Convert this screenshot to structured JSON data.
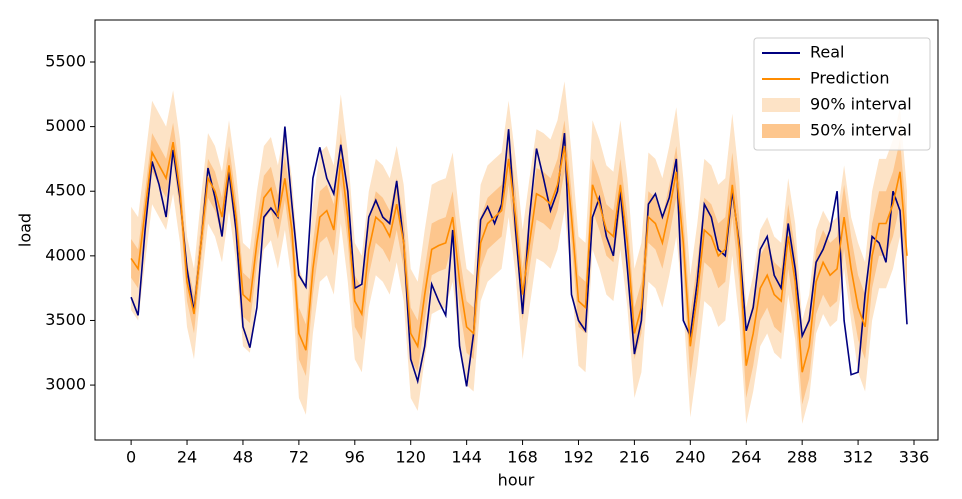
{
  "chart_data": {
    "type": "line",
    "xlabel": "hour",
    "ylabel": "load",
    "xlim": [
      -15.5,
      346.3
    ],
    "ylim": [
      2575,
      5825
    ],
    "xticks": [
      0,
      24,
      48,
      72,
      96,
      120,
      144,
      168,
      192,
      216,
      240,
      264,
      288,
      312,
      336
    ],
    "yticks": [
      3000,
      3500,
      4000,
      4500,
      5000,
      5500
    ],
    "legend": "upper right",
    "x": [
      0,
      3,
      6,
      9,
      12,
      15,
      18,
      21,
      24,
      27,
      30,
      33,
      36,
      39,
      42,
      45,
      48,
      51,
      54,
      57,
      60,
      63,
      66,
      69,
      72,
      75,
      78,
      81,
      84,
      87,
      90,
      93,
      96,
      99,
      102,
      105,
      108,
      111,
      114,
      117,
      120,
      123,
      126,
      129,
      132,
      135,
      138,
      141,
      144,
      147,
      150,
      153,
      156,
      159,
      162,
      165,
      168,
      171,
      174,
      177,
      180,
      183,
      186,
      189,
      192,
      195,
      198,
      201,
      204,
      207,
      210,
      213,
      216,
      219,
      222,
      225,
      228,
      231,
      234,
      237,
      240,
      243,
      246,
      249,
      252,
      255,
      258,
      261,
      264,
      267,
      270,
      273,
      276,
      279,
      282,
      285,
      288,
      291,
      294,
      297,
      300,
      303,
      306,
      309,
      312,
      315,
      318,
      321,
      324,
      327,
      330,
      333
    ],
    "series": [
      {
        "name": "Real",
        "color": "#000080",
        "values": [
          3680,
          3540,
          4200,
          4730,
          4550,
          4300,
          4820,
          4450,
          3900,
          3570,
          4100,
          4680,
          4450,
          4150,
          4650,
          4200,
          3450,
          3290,
          3600,
          4300,
          4370,
          4300,
          5000,
          4400,
          3850,
          3760,
          4600,
          4840,
          4600,
          4480,
          4860,
          4500,
          3750,
          3780,
          4300,
          4430,
          4300,
          4250,
          4580,
          4100,
          3200,
          3030,
          3300,
          3780,
          3650,
          3540,
          4200,
          3300,
          2990,
          3400,
          4280,
          4380,
          4250,
          4400,
          4980,
          4200,
          3550,
          4300,
          4830,
          4600,
          4350,
          4500,
          4950,
          3700,
          3500,
          3420,
          4300,
          4450,
          4150,
          4000,
          4500,
          3900,
          3240,
          3500,
          4400,
          4480,
          4300,
          4450,
          4750,
          3500,
          3380,
          3800,
          4400,
          4300,
          4050,
          4000,
          4500,
          4100,
          3420,
          3600,
          4050,
          4150,
          3850,
          3750,
          4250,
          3900,
          3380,
          3500,
          3950,
          4050,
          4200,
          4500,
          3500,
          3080,
          3100,
          3700,
          4150,
          4100,
          3950,
          4500,
          4350,
          3470
        ]
      },
      {
        "name": "Prediction",
        "color": "#ff8c00",
        "values": [
          3980,
          3900,
          4350,
          4800,
          4700,
          4600,
          4880,
          4500,
          3800,
          3550,
          4100,
          4600,
          4500,
          4300,
          4700,
          4300,
          3700,
          3650,
          4100,
          4450,
          4520,
          4300,
          4600,
          4200,
          3400,
          3270,
          3900,
          4300,
          4350,
          4200,
          4750,
          4300,
          3650,
          3550,
          4050,
          4300,
          4250,
          4150,
          4400,
          4100,
          3400,
          3300,
          3700,
          4050,
          4080,
          4100,
          4300,
          3800,
          3450,
          3400,
          4100,
          4250,
          4300,
          4350,
          4750,
          4300,
          3700,
          4100,
          4480,
          4450,
          4400,
          4550,
          4850,
          4300,
          3650,
          3600,
          4550,
          4400,
          4200,
          4150,
          4550,
          4100,
          3400,
          3600,
          4300,
          4250,
          4100,
          4350,
          4650,
          4100,
          3300,
          3700,
          4200,
          4150,
          4000,
          4050,
          4550,
          4050,
          3150,
          3400,
          3750,
          3850,
          3700,
          3650,
          4150,
          3800,
          3100,
          3300,
          3800,
          3950,
          3850,
          3900,
          4300,
          3900,
          3600,
          3450,
          4000,
          4250,
          4250,
          4400,
          4650,
          4000
        ]
      },
      {
        "name": "90% interval",
        "color": "#fde3c6",
        "lower": [
          3580,
          3500,
          3950,
          4400,
          4300,
          4200,
          4480,
          4100,
          3450,
          3200,
          3750,
          4250,
          4150,
          3950,
          4350,
          3950,
          3300,
          3250,
          3700,
          4050,
          4120,
          3900,
          4200,
          3800,
          2900,
          2770,
          3400,
          3800,
          3850,
          3700,
          4250,
          3800,
          3200,
          3100,
          3600,
          3850,
          3800,
          3700,
          3950,
          3650,
          2900,
          2800,
          3200,
          3550,
          3580,
          3600,
          3800,
          3300,
          3000,
          2950,
          3650,
          3800,
          3850,
          3900,
          4300,
          3850,
          3200,
          3600,
          3980,
          3950,
          3900,
          4050,
          4350,
          3800,
          3150,
          3100,
          4050,
          3900,
          3700,
          3650,
          4050,
          3600,
          2900,
          3100,
          3800,
          3750,
          3600,
          3850,
          4150,
          3600,
          2750,
          3150,
          3650,
          3600,
          3450,
          3500,
          4000,
          3500,
          2700,
          2950,
          3300,
          3400,
          3250,
          3200,
          3700,
          3350,
          2700,
          2900,
          3400,
          3550,
          3450,
          3500,
          3900,
          3500,
          3100,
          2950,
          3500,
          3750,
          3750,
          3900,
          4150,
          3500
        ],
        "upper": [
          4380,
          4300,
          4750,
          5200,
          5100,
          5000,
          5280,
          4900,
          4150,
          3900,
          4450,
          4950,
          4850,
          4650,
          5050,
          4650,
          4100,
          4050,
          4500,
          4850,
          4920,
          4700,
          5000,
          4600,
          3900,
          3770,
          4400,
          4800,
          4850,
          4700,
          5250,
          4800,
          4100,
          4000,
          4500,
          4750,
          4700,
          4600,
          4850,
          4550,
          3900,
          3800,
          4200,
          4550,
          4580,
          4600,
          4800,
          4300,
          3900,
          3850,
          4550,
          4700,
          4750,
          4800,
          5200,
          4750,
          4200,
          4600,
          4980,
          4950,
          4900,
          5050,
          5350,
          4800,
          4150,
          4100,
          5050,
          4900,
          4700,
          4650,
          5050,
          4600,
          3900,
          4100,
          4800,
          4750,
          4600,
          4850,
          5150,
          4600,
          3850,
          4250,
          4750,
          4700,
          4550,
          4600,
          5100,
          4600,
          3600,
          3850,
          4200,
          4300,
          4150,
          4100,
          4600,
          4250,
          3500,
          3700,
          4200,
          4350,
          4250,
          4300,
          4700,
          4300,
          4100,
          3950,
          4500,
          4750,
          4750,
          4900,
          5150,
          4500
        ]
      },
      {
        "name": "50% interval",
        "color": "#fdc68d",
        "lower": [
          3830,
          3750,
          4200,
          4650,
          4550,
          4450,
          4730,
          4350,
          3650,
          3400,
          3950,
          4450,
          4350,
          4150,
          4550,
          4150,
          3530,
          3480,
          3930,
          4280,
          4350,
          4130,
          4430,
          4030,
          3200,
          3070,
          3700,
          4100,
          4150,
          4000,
          4550,
          4100,
          3450,
          3350,
          3850,
          4100,
          4050,
          3950,
          4200,
          3900,
          3200,
          3100,
          3500,
          3850,
          3880,
          3900,
          4100,
          3600,
          3250,
          3200,
          3900,
          4050,
          4100,
          4150,
          4550,
          4100,
          3500,
          3900,
          4280,
          4250,
          4200,
          4350,
          4650,
          4100,
          3450,
          3400,
          4350,
          4200,
          4000,
          3950,
          4350,
          3900,
          3200,
          3400,
          4100,
          4050,
          3900,
          4150,
          4450,
          3900,
          3050,
          3450,
          3950,
          3900,
          3750,
          3800,
          4300,
          3800,
          2900,
          3150,
          3500,
          3600,
          3450,
          3400,
          3900,
          3550,
          2850,
          3050,
          3550,
          3700,
          3600,
          3650,
          4050,
          3650,
          3350,
          3200,
          3750,
          4000,
          4000,
          4150,
          4400,
          3750
        ],
        "upper": [
          4130,
          4050,
          4500,
          4950,
          4850,
          4750,
          5030,
          4650,
          3950,
          3700,
          4250,
          4750,
          4650,
          4450,
          4850,
          4450,
          3870,
          3820,
          4270,
          4620,
          4690,
          4470,
          4770,
          4370,
          3600,
          3470,
          4100,
          4500,
          4550,
          4400,
          4950,
          4500,
          3850,
          3750,
          4250,
          4500,
          4450,
          4350,
          4600,
          4300,
          3600,
          3500,
          3900,
          4250,
          4280,
          4300,
          4500,
          4000,
          3650,
          3600,
          4300,
          4450,
          4500,
          4550,
          4950,
          4500,
          3900,
          4300,
          4680,
          4650,
          4600,
          4750,
          5050,
          4500,
          3850,
          3800,
          4750,
          4600,
          4400,
          4350,
          4750,
          4300,
          3600,
          3800,
          4500,
          4450,
          4300,
          4550,
          4850,
          4300,
          3550,
          3950,
          4450,
          4400,
          4250,
          4300,
          4800,
          4300,
          3400,
          3650,
          4000,
          4100,
          3950,
          3900,
          4400,
          4050,
          3350,
          3550,
          4050,
          4200,
          4100,
          4150,
          4550,
          4150,
          3850,
          3700,
          4250,
          4500,
          4500,
          4650,
          4900,
          4250
        ]
      }
    ]
  }
}
